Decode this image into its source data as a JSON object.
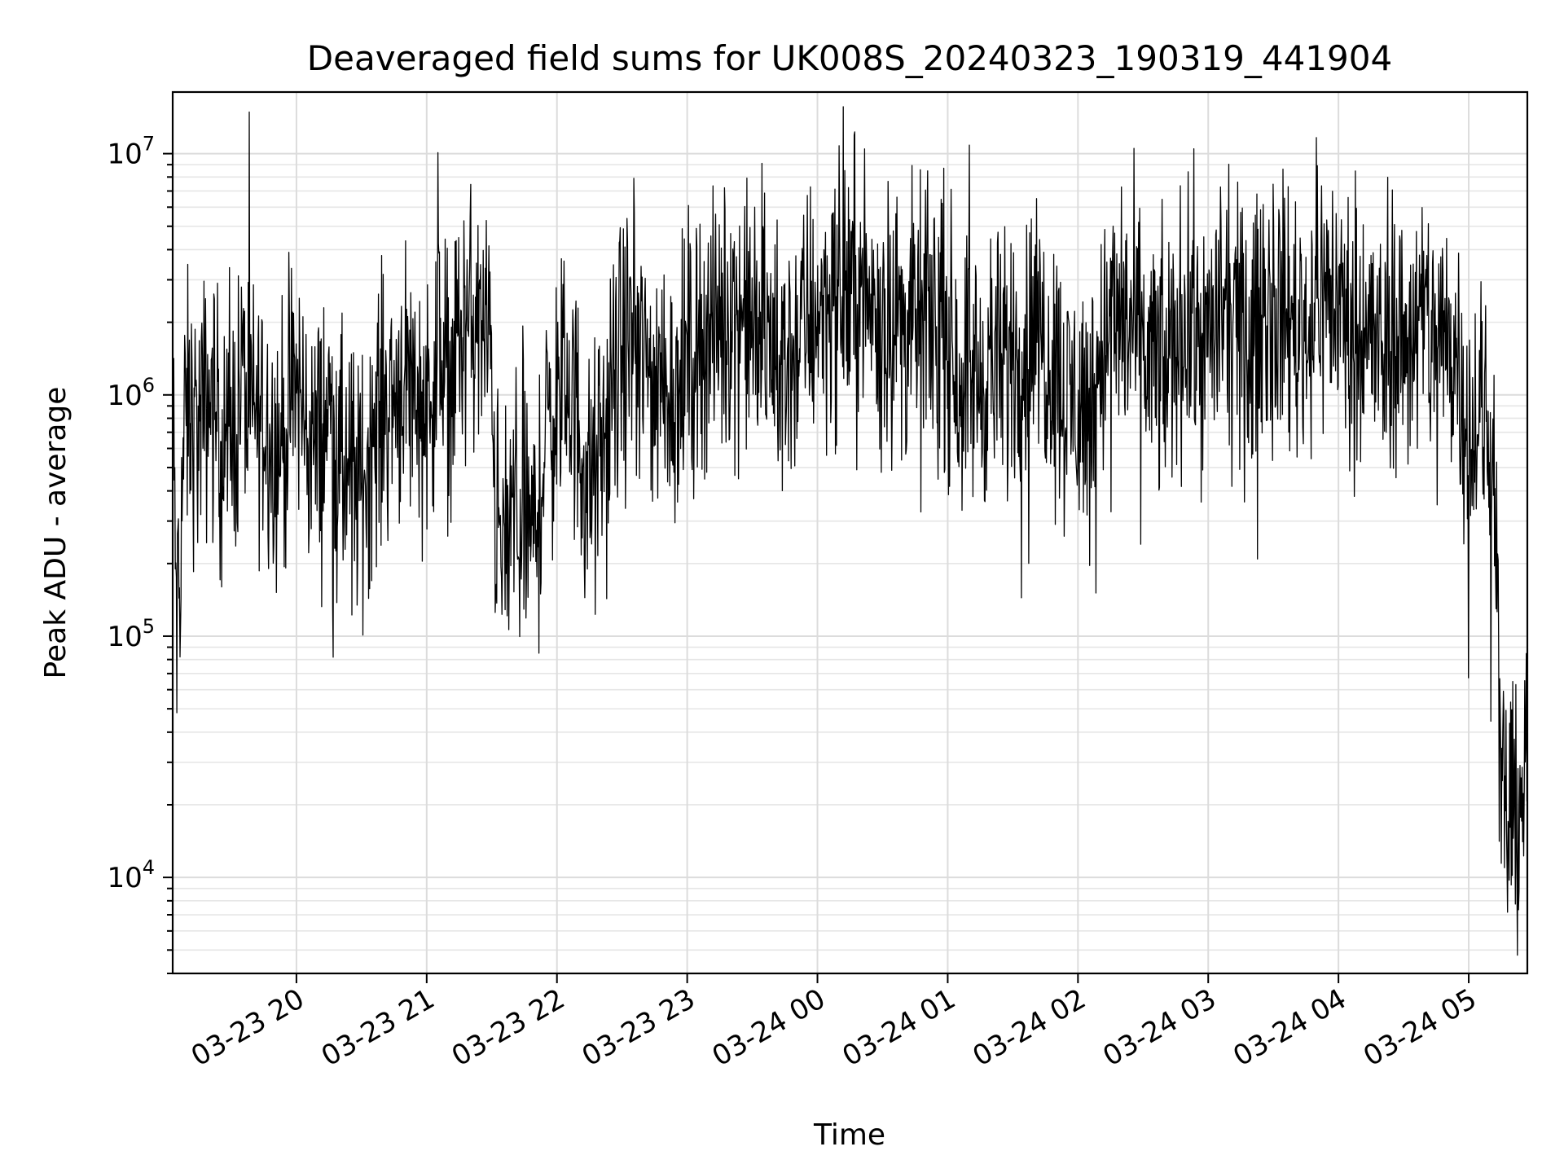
{
  "chart_data": {
    "type": "line",
    "title": "Deaveraged field sums for UK008S_20240323_190319_441904",
    "xlabel": "Time",
    "ylabel": "Peak ADU - average",
    "yscale": "log",
    "ylim": [
      4000,
      18000000
    ],
    "xlim": [
      "2024-03-23 19:03",
      "2024-03-24 05:27"
    ],
    "grid": true,
    "x_ticks": [
      {
        "t": "2024-03-23 20:00",
        "label": "03-23 20"
      },
      {
        "t": "2024-03-23 21:00",
        "label": "03-23 21"
      },
      {
        "t": "2024-03-23 22:00",
        "label": "03-23 22"
      },
      {
        "t": "2024-03-23 23:00",
        "label": "03-23 23"
      },
      {
        "t": "2024-03-24 00:00",
        "label": "03-24 00"
      },
      {
        "t": "2024-03-24 01:00",
        "label": "03-24 01"
      },
      {
        "t": "2024-03-24 02:00",
        "label": "03-24 02"
      },
      {
        "t": "2024-03-24 03:00",
        "label": "03-24 03"
      },
      {
        "t": "2024-03-24 04:00",
        "label": "03-24 04"
      },
      {
        "t": "2024-03-24 05:00",
        "label": "03-24 05"
      }
    ],
    "y_ticks": [
      {
        "value": 10000,
        "base": "10",
        "exp": "4"
      },
      {
        "value": 100000,
        "base": "10",
        "exp": "5"
      },
      {
        "value": 1000000,
        "base": "10",
        "exp": "6"
      },
      {
        "value": 10000000,
        "base": "10",
        "exp": "7"
      }
    ],
    "series": [
      {
        "color": "#000000",
        "x": [
          "2024-03-23 19:03",
          "2024-03-23 19:05",
          "2024-03-23 19:08",
          "2024-03-23 19:10",
          "2024-03-23 19:15",
          "2024-03-23 19:20",
          "2024-03-23 19:25",
          "2024-03-23 19:30",
          "2024-03-23 19:35",
          "2024-03-23 19:40",
          "2024-03-23 19:45",
          "2024-03-23 19:50",
          "2024-03-23 19:55",
          "2024-03-23 20:00",
          "2024-03-23 20:05",
          "2024-03-23 20:10",
          "2024-03-23 20:15",
          "2024-03-23 20:20",
          "2024-03-23 20:26",
          "2024-03-23 20:30",
          "2024-03-23 20:35",
          "2024-03-23 20:40",
          "2024-03-23 20:45",
          "2024-03-23 20:50",
          "2024-03-23 20:55",
          "2024-03-23 21:00",
          "2024-03-23 21:05",
          "2024-03-23 21:10",
          "2024-03-23 21:15",
          "2024-03-23 21:20",
          "2024-03-23 21:25",
          "2024-03-23 21:30",
          "2024-03-23 21:32",
          "2024-03-23 21:35",
          "2024-03-23 21:40",
          "2024-03-23 21:45",
          "2024-03-23 21:50",
          "2024-03-23 21:55",
          "2024-03-23 22:00",
          "2024-03-23 22:05",
          "2024-03-23 22:10",
          "2024-03-23 22:15",
          "2024-03-23 22:20",
          "2024-03-23 22:25",
          "2024-03-23 22:30",
          "2024-03-23 22:35",
          "2024-03-23 22:40",
          "2024-03-23 22:45",
          "2024-03-23 22:50",
          "2024-03-23 22:55",
          "2024-03-23 23:00",
          "2024-03-23 23:05",
          "2024-03-23 23:10",
          "2024-03-23 23:15",
          "2024-03-23 23:20",
          "2024-03-23 23:25",
          "2024-03-23 23:30",
          "2024-03-23 23:35",
          "2024-03-23 23:40",
          "2024-03-23 23:45",
          "2024-03-23 23:50",
          "2024-03-23 23:55",
          "2024-03-24 00:00",
          "2024-03-24 00:05",
          "2024-03-24 00:10",
          "2024-03-24 00:15",
          "2024-03-24 00:20",
          "2024-03-24 00:25",
          "2024-03-24 00:30",
          "2024-03-24 00:35",
          "2024-03-24 00:40",
          "2024-03-24 00:45",
          "2024-03-24 00:50",
          "2024-03-24 00:55",
          "2024-03-24 01:00",
          "2024-03-24 01:05",
          "2024-03-24 01:10",
          "2024-03-24 01:15",
          "2024-03-24 01:20",
          "2024-03-24 01:25",
          "2024-03-24 01:30",
          "2024-03-24 01:35",
          "2024-03-24 01:40",
          "2024-03-24 01:45",
          "2024-03-24 01:50",
          "2024-03-24 01:55",
          "2024-03-24 02:00",
          "2024-03-24 02:05",
          "2024-03-24 02:10",
          "2024-03-24 02:15",
          "2024-03-24 02:20",
          "2024-03-24 02:25",
          "2024-03-24 02:30",
          "2024-03-24 02:35",
          "2024-03-24 02:40",
          "2024-03-24 02:45",
          "2024-03-24 02:50",
          "2024-03-24 02:55",
          "2024-03-24 03:00",
          "2024-03-24 03:05",
          "2024-03-24 03:10",
          "2024-03-24 03:15",
          "2024-03-24 03:20",
          "2024-03-24 03:25",
          "2024-03-24 03:30",
          "2024-03-24 03:35",
          "2024-03-24 03:40",
          "2024-03-24 03:45",
          "2024-03-24 03:50",
          "2024-03-24 03:55",
          "2024-03-24 04:00",
          "2024-03-24 04:05",
          "2024-03-24 04:10",
          "2024-03-24 04:15",
          "2024-03-24 04:20",
          "2024-03-24 04:25",
          "2024-03-24 04:30",
          "2024-03-24 04:35",
          "2024-03-24 04:40",
          "2024-03-24 04:45",
          "2024-03-24 04:50",
          "2024-03-24 04:55",
          "2024-03-24 05:00",
          "2024-03-24 05:05",
          "2024-03-24 05:08",
          "2024-03-24 05:10",
          "2024-03-24 05:12",
          "2024-03-24 05:15",
          "2024-03-24 05:18",
          "2024-03-24 05:20",
          "2024-03-24 05:22",
          "2024-03-24 05:25",
          "2024-03-24 05:27"
        ],
        "y": [
          900000,
          100000,
          600000,
          850000,
          700000,
          1000000,
          700000,
          600000,
          1200000,
          800000,
          900000,
          600000,
          700000,
          1100000,
          700000,
          600000,
          900000,
          500000,
          450000,
          400000,
          700000,
          900000,
          1000000,
          1300000,
          1000000,
          900000,
          1400000,
          1200000,
          1700000,
          2000000,
          1800000,
          1500000,
          300000,
          200000,
          350000,
          300000,
          250000,
          700000,
          900000,
          1200000,
          700000,
          400000,
          500000,
          900000,
          1500000,
          1600000,
          1300000,
          1100000,
          1200000,
          1000000,
          1400000,
          1600000,
          1900000,
          1800000,
          2300000,
          2200000,
          1900000,
          1800000,
          1500000,
          1300000,
          1600000,
          2000000,
          2300000,
          2500000,
          2400000,
          2800000,
          2600000,
          2300000,
          2200000,
          2100000,
          2000000,
          1900000,
          2100000,
          2000000,
          1900000,
          1200000,
          1300000,
          1100000,
          1400000,
          1200000,
          1600000,
          1400000,
          2000000,
          1600000,
          1300000,
          900000,
          1000000,
          800000,
          1500000,
          1900000,
          2100000,
          1800000,
          1500000,
          1400000,
          1200000,
          1700000,
          2000000,
          1800000,
          1600000,
          2200000,
          1900000,
          1700000,
          1500000,
          2500000,
          2400000,
          2200000,
          2000000,
          1800000,
          2700000,
          2600000,
          2400000,
          1900000,
          2100000,
          1700000,
          1400000,
          1800000,
          1600000,
          1900000,
          2000000,
          1800000,
          1700000,
          1500000,
          700000,
          800000,
          700000,
          600000,
          600000,
          20000,
          18000,
          15000,
          20000,
          25000,
          30000
        ]
      }
    ]
  }
}
